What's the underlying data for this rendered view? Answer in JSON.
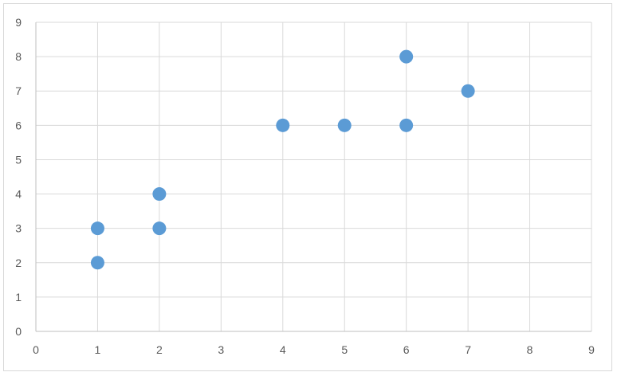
{
  "chart_data": {
    "type": "scatter",
    "title": "",
    "xlabel": "",
    "ylabel": "",
    "xlim": [
      0,
      9
    ],
    "ylim": [
      0,
      9
    ],
    "x_ticks": [
      "0",
      "1",
      "2",
      "3",
      "4",
      "5",
      "6",
      "7",
      "8",
      "9"
    ],
    "y_ticks": [
      "0",
      "1",
      "2",
      "3",
      "4",
      "5",
      "6",
      "7",
      "8",
      "9"
    ],
    "grid": true,
    "legend": "none",
    "series": [
      {
        "color": "#5b9bd5",
        "points": [
          {
            "x": 1,
            "y": 2
          },
          {
            "x": 1,
            "y": 3
          },
          {
            "x": 2,
            "y": 3
          },
          {
            "x": 2,
            "y": 4
          },
          {
            "x": 4,
            "y": 6
          },
          {
            "x": 5,
            "y": 6
          },
          {
            "x": 6,
            "y": 6
          },
          {
            "x": 6,
            "y": 8
          },
          {
            "x": 7,
            "y": 7
          }
        ]
      }
    ]
  }
}
